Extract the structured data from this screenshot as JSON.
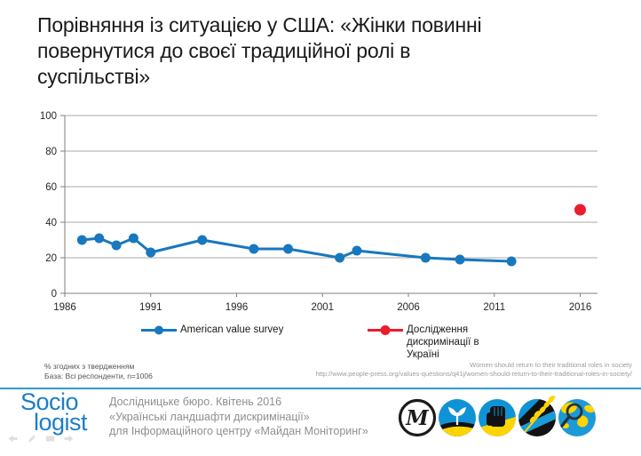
{
  "title": "Порівняння із ситуацією у США: «Жінки повинні повернутися до своєї традиційної ролі в суспільстві»",
  "chart_data": {
    "type": "line",
    "title": "",
    "xlabel": "",
    "ylabel": "",
    "xlim": [
      1986,
      2017
    ],
    "ylim": [
      0,
      100
    ],
    "xticks": [
      1986,
      1991,
      1996,
      2001,
      2006,
      2011,
      2016
    ],
    "yticks": [
      0,
      20,
      40,
      60,
      80,
      100
    ],
    "grid": true,
    "legend_position": "bottom",
    "series": [
      {
        "name": "American value survey",
        "color": "#1878BE",
        "line_width": 3,
        "marker_radius": 5.5,
        "x": [
          1987,
          1988,
          1989,
          1990,
          1991,
          1994,
          1997,
          1999,
          2002,
          2003,
          2007,
          2009,
          2012
        ],
        "y": [
          30,
          31,
          27,
          31,
          23,
          30,
          25,
          25,
          20,
          24,
          20,
          19,
          18
        ]
      },
      {
        "name": "Дослідження дискримінації в Україні",
        "color": "#EB1C2C",
        "line_width": 3,
        "marker_radius": 6.5,
        "x": [
          2016
        ],
        "y": [
          47
        ]
      }
    ]
  },
  "notes": {
    "measure": "% згодних з твердженням",
    "base": "База: Всі респонденти, n=1006"
  },
  "source": {
    "title": "Women should return to their traditional roles in society",
    "url": "http://www.people-press.org/values-questions/q41j/women-should-return-to-their-traditional-roles-in-society/"
  },
  "footer": {
    "accent_color": "#2E9BD5",
    "logo_color": "#1C7EC6",
    "logo_line1": "Socio",
    "logo_line2": "logist",
    "credit_line1": "Дослідницьке бюро. Квітень 2016",
    "credit_line2": "«Українські ландшафти дискримінації»",
    "credit_line3": "для Інформаційного центру «Майдан Моніторинг»",
    "partner_logos": [
      "maidan-m-logo",
      "sprout-field-logo",
      "fist-logo",
      "wheat-logo",
      "globe-magnifier-logo"
    ]
  },
  "nav": {
    "icons": [
      "back-arrow-icon",
      "pencil-icon",
      "screen-icon",
      "forward-arrow-icon"
    ]
  }
}
